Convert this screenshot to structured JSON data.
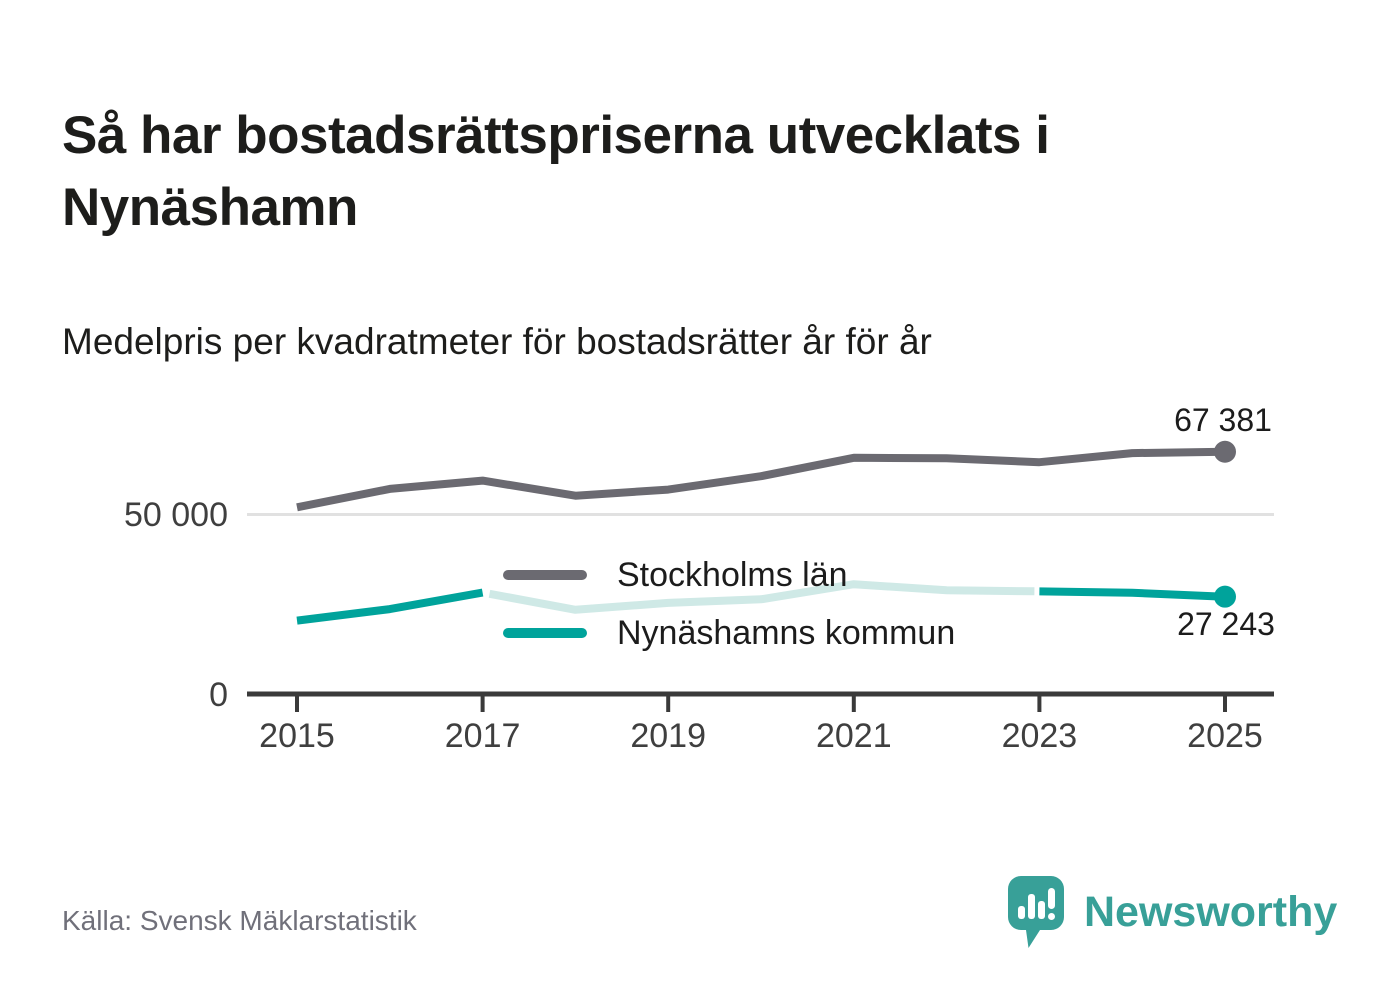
{
  "title": "Så har bostadsrättspriserna utvecklats i Nynäshamn",
  "subtitle": "Medelpris per kvadratmeter för bostadsrätter år för år",
  "source": "Källa: Svensk Mäklarstatistik",
  "brand": {
    "name": "Newsworthy",
    "color": "#38a098"
  },
  "colors": {
    "background": "#ffffff",
    "title_text": "#1d1d1b",
    "axis_text": "#3f3f3f",
    "axis_line": "#3a3a3a",
    "gridline": "#e1e1e1",
    "series_gray": "#6b6a71",
    "series_teal": "#00a39b",
    "series_teal_muted": "#cfe9e6",
    "source_text": "#70707a"
  },
  "chart_data": {
    "type": "line",
    "x": [
      2015,
      2016,
      2017,
      2018,
      2019,
      2020,
      2021,
      2022,
      2023,
      2024,
      2025
    ],
    "series": [
      {
        "name": "Stockholms län",
        "color": "#6b6a71",
        "values": [
          52000,
          57100,
          59400,
          55200,
          56900,
          60600,
          65700,
          65600,
          64500,
          67000,
          67381
        ],
        "end_label": "67 381",
        "end_dot": true
      },
      {
        "name": "Nynäshamns kommun",
        "color": "#00a39b",
        "muted_color": "#cfe9e6",
        "muted_range": [
          2017,
          2023
        ],
        "values": [
          20600,
          23800,
          28400,
          23600,
          25500,
          26500,
          30700,
          29000,
          28700,
          28300,
          27243
        ],
        "end_label": "27 243",
        "end_dot": true
      }
    ],
    "title": "Så har bostadsrättspriserna utvecklats i Nynäshamn",
    "subtitle": "Medelpris per kvadratmeter för bostadsrätter år för år",
    "xlabel": "",
    "ylabel": "",
    "ylim": [
      0,
      72000
    ],
    "yticks": [
      {
        "value": 0,
        "label": "0"
      },
      {
        "value": 50000,
        "label": "50 000"
      }
    ],
    "xticks": [
      2015,
      2017,
      2019,
      2021,
      2023,
      2025
    ],
    "grid": "single horizontal gridline at 50 000",
    "legend_position": "inside middle-left"
  }
}
